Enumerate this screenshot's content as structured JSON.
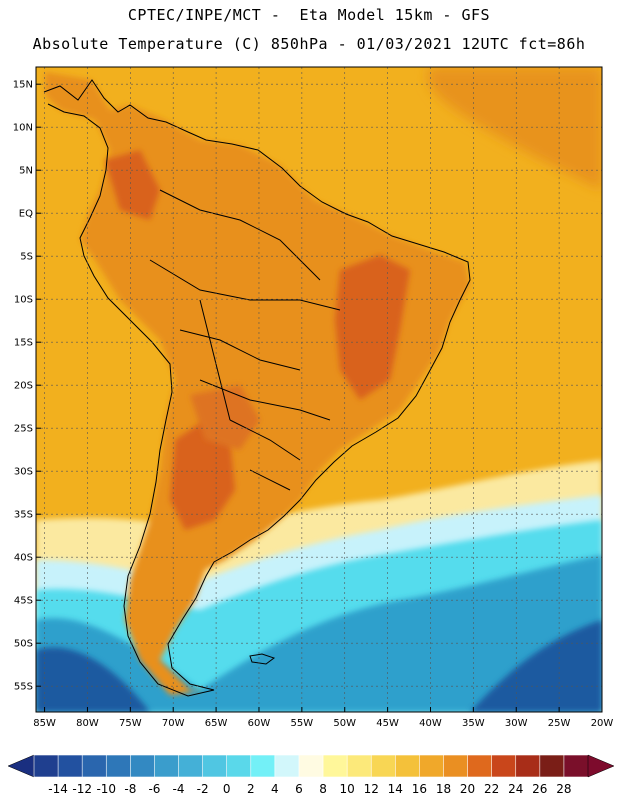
{
  "header": {
    "line1": "CPTEC/INPE/MCT -  Eta Model 15km - GFS",
    "line2": "Absolute Temperature (C) 850hPa - 01/03/2021 12UTC fct=86h"
  },
  "map": {
    "lat_labels": [
      "15N",
      "10N",
      "5N",
      "EQ",
      "5S",
      "10S",
      "15S",
      "20S",
      "25S",
      "30S",
      "35S",
      "40S",
      "45S",
      "50S",
      "55S"
    ],
    "lon_labels": [
      "85W",
      "80W",
      "75W",
      "70W",
      "65W",
      "60W",
      "55W",
      "50W",
      "45W",
      "40W",
      "35W",
      "30W",
      "25W",
      "20W"
    ],
    "lat_values": [
      15,
      10,
      5,
      0,
      -5,
      -10,
      -15,
      -20,
      -25,
      -30,
      -35,
      -40,
      -45,
      -50,
      -55
    ],
    "lon_values": [
      -85,
      -80,
      -75,
      -70,
      -65,
      -60,
      -55,
      -50,
      -45,
      -40,
      -35,
      -30,
      -25,
      -20
    ],
    "lon_range": [
      -86,
      -20
    ],
    "lat_range": [
      -58,
      17
    ],
    "grid": "dotted",
    "ocean_color": "#f2b01e",
    "land_color": "#e8901a",
    "hot_color": "#d9621b",
    "cold_colors": [
      "#fbe9a0",
      "#c7f2fb",
      "#55dced",
      "#2ea0cc",
      "#1f5aa0"
    ]
  },
  "colorbar": {
    "labels": [
      "-14",
      "-12",
      "-10",
      "-8",
      "-6",
      "-4",
      "-2",
      "0",
      "2",
      "4",
      "6",
      "8",
      "10",
      "12",
      "14",
      "16",
      "18",
      "20",
      "22",
      "24",
      "26",
      "28"
    ],
    "colors": [
      "#1f3f8f",
      "#2251a0",
      "#2a66ae",
      "#2e77b8",
      "#3389c2",
      "#3a9dcc",
      "#44b0d7",
      "#50c6e2",
      "#5ad8ea",
      "#73f0f7",
      "#d2f7fb",
      "#fffbe2",
      "#fff79a",
      "#fce97a",
      "#f8d654",
      "#f4c13a",
      "#f0a82a",
      "#ea8f22",
      "#df691d",
      "#c9461b",
      "#a82d18",
      "#7a1e17",
      "#7a0f2a"
    ],
    "under_color": "#1a2f80",
    "over_color": "#7d0b2c"
  }
}
